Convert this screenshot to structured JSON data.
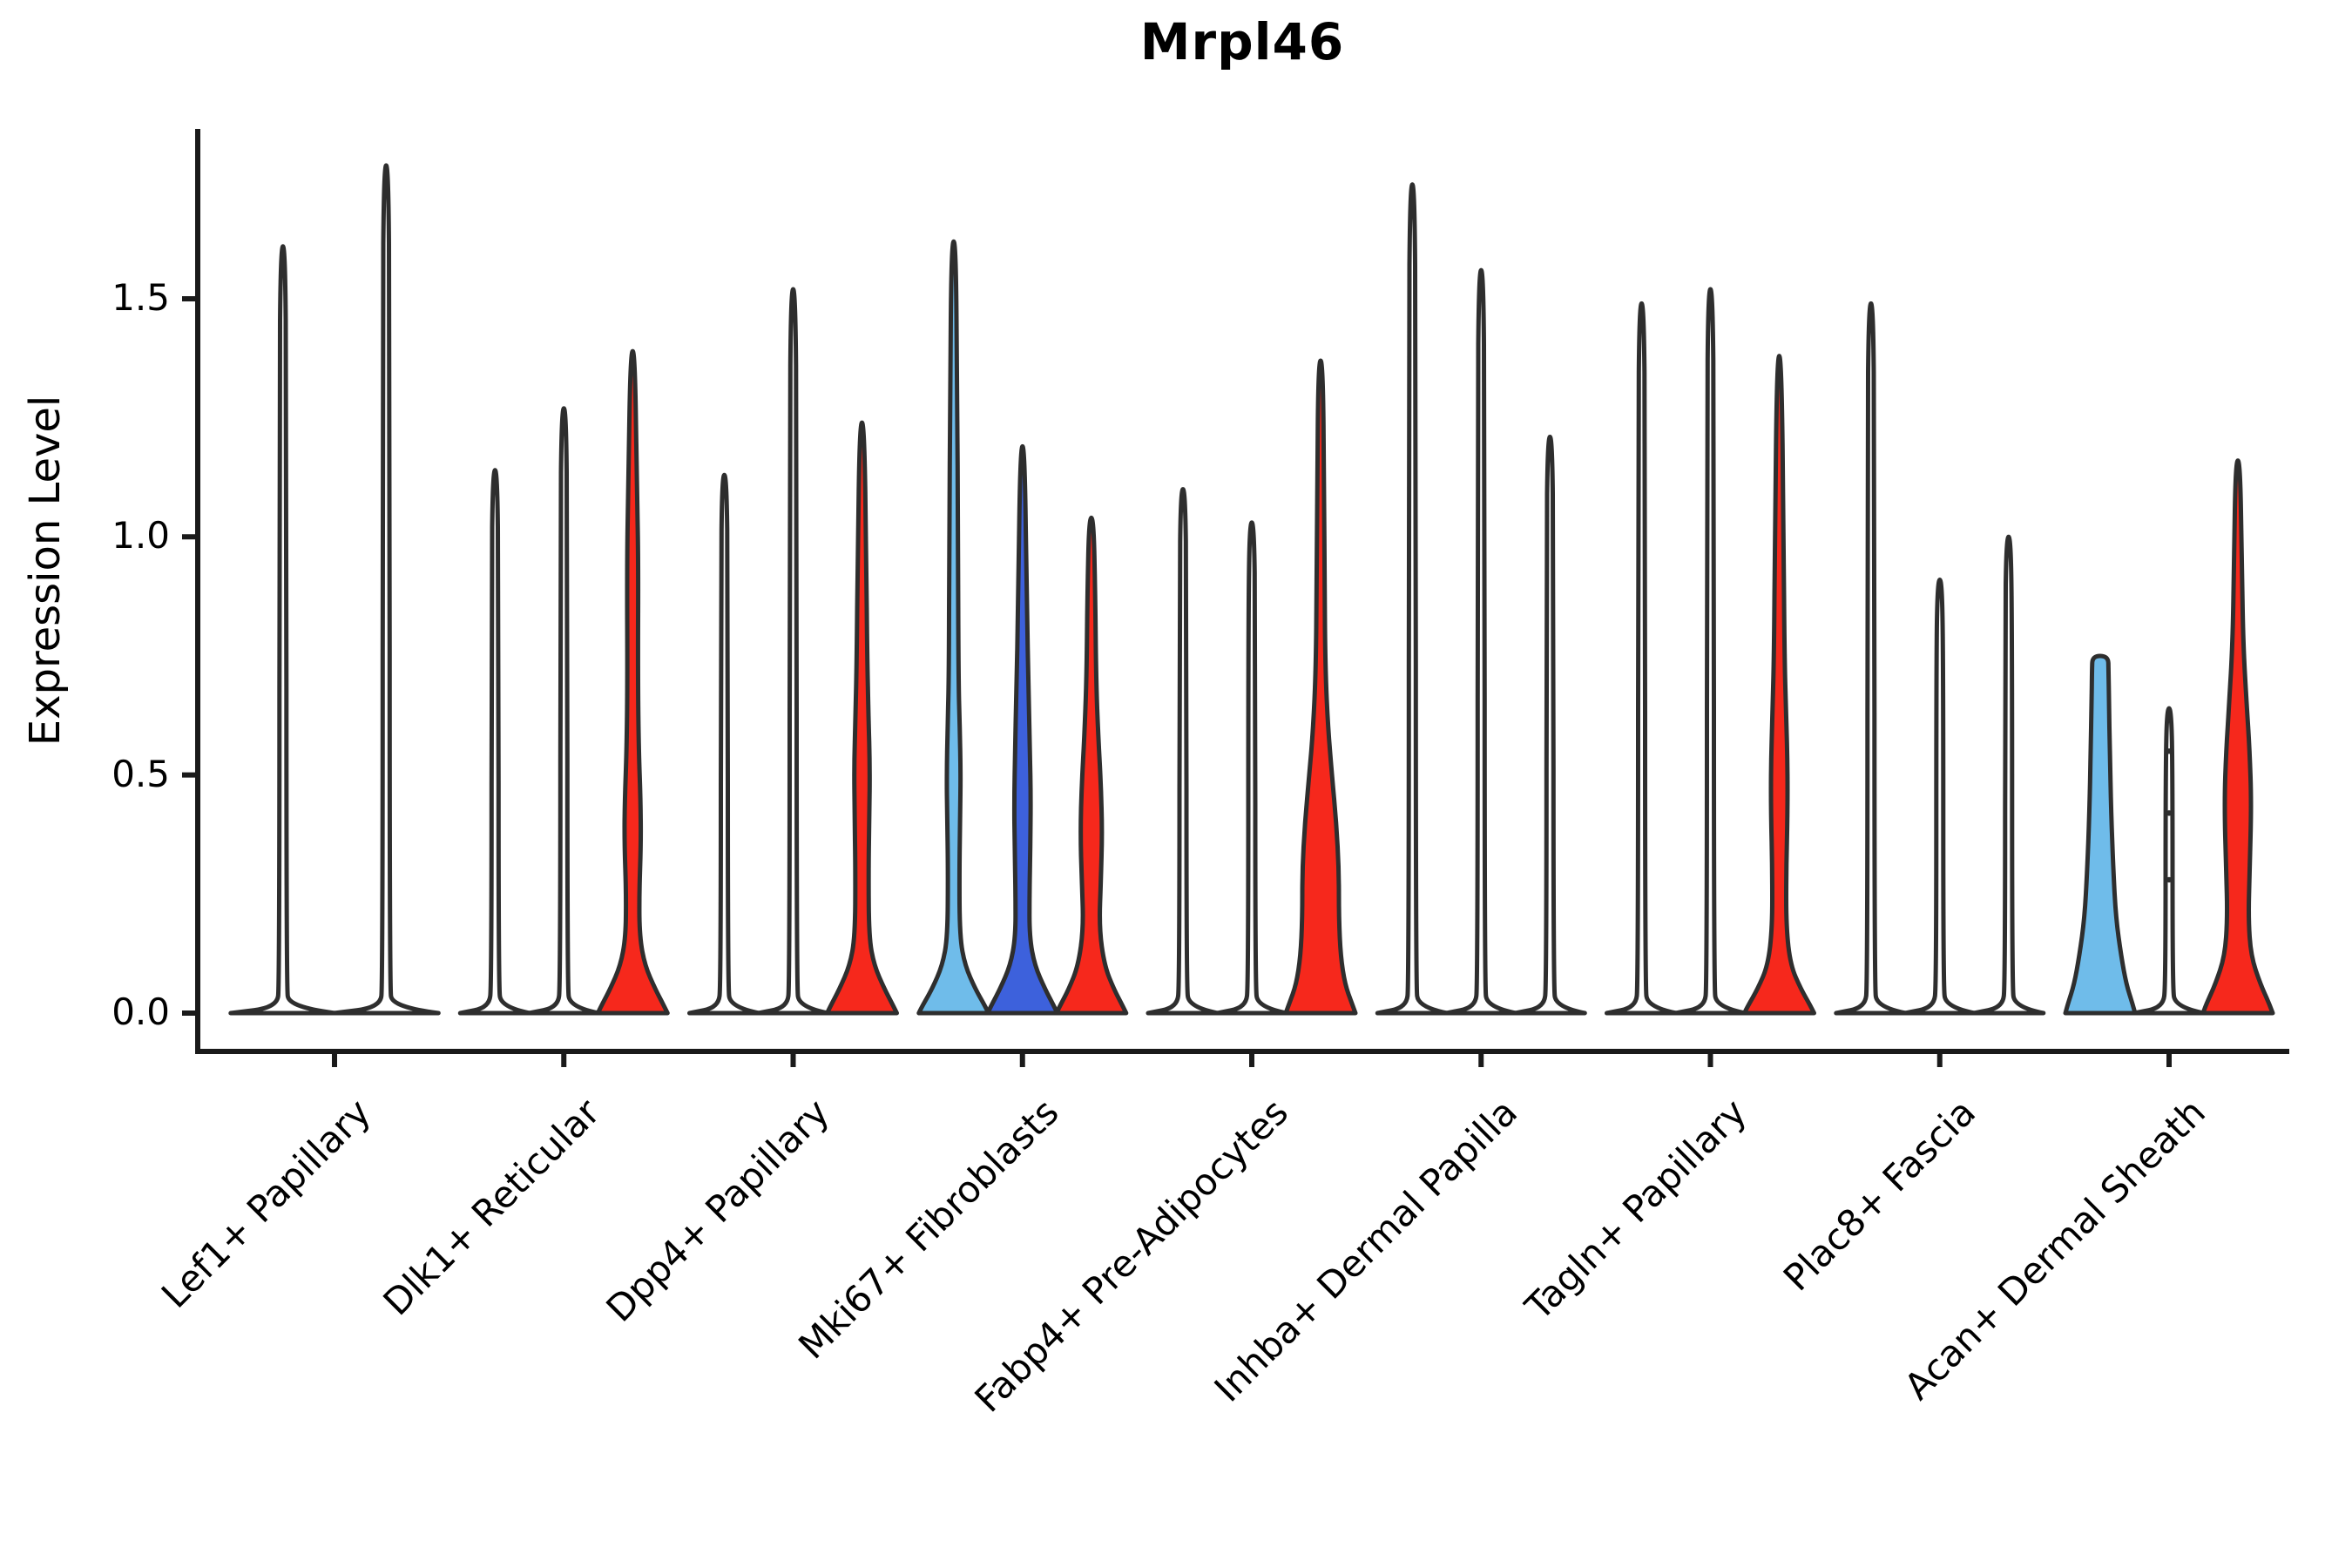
{
  "title": "Mrpl46",
  "ylabel": "Expression Level",
  "colors": {
    "red": "#f6281c",
    "blue": "#3d61dc",
    "lightblue": "#6fbcea",
    "white": "#ffffff",
    "outline": "#2e2e2e",
    "axis": "#1a1a1a"
  },
  "chart_data": {
    "type": "violin",
    "title": "Mrpl46",
    "xlabel": "",
    "ylabel": "Expression Level",
    "ylim": [
      0,
      1.85
    ],
    "yticks": [
      "0.0",
      "0.5",
      "1.0",
      "1.5"
    ],
    "ytick_values": [
      0.0,
      0.5,
      1.0,
      1.5
    ],
    "legend": "none",
    "grid": false,
    "categories": [
      "Lef1+ Papillary",
      "Dlk1+ Reticular",
      "Dpp4+ Papillary",
      "Mki67+ Fibroblasts",
      "Fabp4+ Pre-Adipocytes",
      "Inhba+ Dermal Papilla",
      "Tagln+ Papillary",
      "Plac8+ Fascia",
      "Acan+ Dermal Sheath"
    ],
    "groups": [
      {
        "label": "Lef1+ Papillary",
        "violins": [
          {
            "color": "white",
            "max": 1.61,
            "profile": [
              [
                0,
                60
              ],
              [
                0.012,
                7
              ],
              [
                0.06,
                4
              ],
              [
                1.3,
                4
              ],
              [
                1.61,
                2.5
              ]
            ]
          },
          {
            "color": "white",
            "max": 1.78,
            "profile": [
              [
                0,
                60
              ],
              [
                0.012,
                7
              ],
              [
                0.06,
                4
              ],
              [
                1.45,
                4
              ],
              [
                1.78,
                2.5
              ]
            ]
          }
        ]
      },
      {
        "label": "Dlk1+ Reticular",
        "violins": [
          {
            "color": "white",
            "max": 1.14,
            "profile": [
              [
                0,
                40
              ],
              [
                0.012,
                7
              ],
              [
                0.06,
                4
              ],
              [
                0.9,
                4
              ],
              [
                1.14,
                2.5
              ]
            ]
          },
          {
            "color": "white",
            "max": 1.27,
            "profile": [
              [
                0,
                40
              ],
              [
                0.012,
                7
              ],
              [
                0.06,
                4
              ],
              [
                1.0,
                4
              ],
              [
                1.27,
                2.5
              ]
            ]
          },
          {
            "color": "red",
            "max": 1.39,
            "profile": [
              [
                0,
                40
              ],
              [
                0.015,
                36
              ],
              [
                0.05,
                26
              ],
              [
                0.1,
                14
              ],
              [
                0.16,
                8
              ],
              [
                0.25,
                7.5
              ],
              [
                0.36,
                9.5
              ],
              [
                0.45,
                9
              ],
              [
                0.55,
                7
              ],
              [
                0.7,
                6
              ],
              [
                0.95,
                6.5
              ],
              [
                1.1,
                5
              ],
              [
                1.39,
                2.5
              ]
            ]
          }
        ]
      },
      {
        "label": "Dpp4+ Papillary",
        "violins": [
          {
            "color": "white",
            "max": 1.13,
            "profile": [
              [
                0,
                40
              ],
              [
                0.012,
                7
              ],
              [
                0.06,
                4
              ],
              [
                0.9,
                4
              ],
              [
                1.13,
                2.5
              ]
            ]
          },
          {
            "color": "white",
            "max": 1.52,
            "profile": [
              [
                0,
                40
              ],
              [
                0.012,
                7
              ],
              [
                0.06,
                4
              ],
              [
                1.2,
                4
              ],
              [
                1.52,
                2.5
              ]
            ]
          },
          {
            "color": "red",
            "max": 1.24,
            "profile": [
              [
                0,
                40
              ],
              [
                0.015,
                36
              ],
              [
                0.05,
                26
              ],
              [
                0.1,
                14
              ],
              [
                0.16,
                8
              ],
              [
                0.3,
                7.5
              ],
              [
                0.42,
                8.5
              ],
              [
                0.52,
                9
              ],
              [
                0.62,
                7.5
              ],
              [
                0.75,
                6
              ],
              [
                0.95,
                5
              ],
              [
                1.24,
                2.5
              ]
            ]
          }
        ]
      },
      {
        "label": "Mki67+ Fibroblasts",
        "violins": [
          {
            "color": "lightblue",
            "max": 1.62,
            "profile": [
              [
                0,
                40
              ],
              [
                0.015,
                36
              ],
              [
                0.05,
                25
              ],
              [
                0.1,
                13
              ],
              [
                0.16,
                7
              ],
              [
                0.3,
                6.5
              ],
              [
                0.42,
                7.5
              ],
              [
                0.5,
                8
              ],
              [
                0.6,
                7
              ],
              [
                0.7,
                5.5
              ],
              [
                1.0,
                5
              ],
              [
                1.3,
                4
              ],
              [
                1.62,
                2.5
              ]
            ]
          },
          {
            "color": "blue",
            "max": 1.19,
            "profile": [
              [
                0,
                40
              ],
              [
                0.015,
                36
              ],
              [
                0.05,
                26
              ],
              [
                0.1,
                14
              ],
              [
                0.16,
                8
              ],
              [
                0.25,
                8
              ],
              [
                0.35,
                9
              ],
              [
                0.45,
                9.5
              ],
              [
                0.55,
                8.5
              ],
              [
                0.68,
                7
              ],
              [
                0.85,
                5
              ],
              [
                1.19,
                2.5
              ]
            ]
          },
          {
            "color": "red",
            "max": 1.04,
            "profile": [
              [
                0,
                40
              ],
              [
                0.015,
                36
              ],
              [
                0.05,
                26
              ],
              [
                0.1,
                15
              ],
              [
                0.18,
                9
              ],
              [
                0.28,
                11
              ],
              [
                0.38,
                12.5
              ],
              [
                0.48,
                11
              ],
              [
                0.58,
                8
              ],
              [
                0.7,
                5.5
              ],
              [
                0.88,
                4.5
              ],
              [
                1.04,
                2.5
              ]
            ]
          }
        ]
      },
      {
        "label": "Fabp4+ Pre-Adipocytes",
        "violins": [
          {
            "color": "white",
            "max": 1.1,
            "profile": [
              [
                0,
                40
              ],
              [
                0.012,
                7
              ],
              [
                0.06,
                4
              ],
              [
                0.88,
                4
              ],
              [
                1.1,
                2.5
              ]
            ]
          },
          {
            "color": "white",
            "max": 1.03,
            "profile": [
              [
                0,
                40
              ],
              [
                0.012,
                7
              ],
              [
                0.06,
                4
              ],
              [
                0.82,
                4
              ],
              [
                1.03,
                2.5
              ]
            ]
          },
          {
            "color": "red",
            "max": 1.37,
            "profile": [
              [
                0,
                40
              ],
              [
                0.02,
                36
              ],
              [
                0.06,
                28
              ],
              [
                0.12,
                23
              ],
              [
                0.2,
                21
              ],
              [
                0.3,
                21
              ],
              [
                0.4,
                18
              ],
              [
                0.5,
                13
              ],
              [
                0.6,
                8.5
              ],
              [
                0.72,
                5.5
              ],
              [
                0.9,
                4.5
              ],
              [
                1.1,
                4
              ],
              [
                1.37,
                2.5
              ]
            ]
          }
        ]
      },
      {
        "label": "Inhba+ Dermal Papilla",
        "violins": [
          {
            "color": "white",
            "max": 1.74,
            "profile": [
              [
                0,
                40
              ],
              [
                0.012,
                7
              ],
              [
                0.06,
                4
              ],
              [
                1.4,
                4
              ],
              [
                1.74,
                2.5
              ]
            ]
          },
          {
            "color": "white",
            "max": 1.56,
            "profile": [
              [
                0,
                40
              ],
              [
                0.012,
                7
              ],
              [
                0.06,
                4
              ],
              [
                1.25,
                4
              ],
              [
                1.56,
                2.5
              ]
            ]
          },
          {
            "color": "white",
            "max": 1.21,
            "profile": [
              [
                0,
                40
              ],
              [
                0.012,
                7
              ],
              [
                0.06,
                4
              ],
              [
                0.97,
                4
              ],
              [
                1.21,
                2.5
              ]
            ]
          }
        ]
      },
      {
        "label": "Tagln+ Papillary",
        "violins": [
          {
            "color": "white",
            "max": 1.49,
            "profile": [
              [
                0,
                40
              ],
              [
                0.012,
                7
              ],
              [
                0.06,
                4
              ],
              [
                1.2,
                4
              ],
              [
                1.49,
                2.5
              ]
            ]
          },
          {
            "color": "white",
            "max": 1.52,
            "profile": [
              [
                0,
                40
              ],
              [
                0.012,
                7
              ],
              [
                0.06,
                4
              ],
              [
                1.22,
                4
              ],
              [
                1.52,
                2.5
              ]
            ]
          },
          {
            "color": "red",
            "max": 1.38,
            "profile": [
              [
                0,
                40
              ],
              [
                0.015,
                36
              ],
              [
                0.05,
                25
              ],
              [
                0.1,
                13
              ],
              [
                0.18,
                8
              ],
              [
                0.3,
                8
              ],
              [
                0.42,
                9.5
              ],
              [
                0.52,
                9.5
              ],
              [
                0.62,
                8
              ],
              [
                0.75,
                6
              ],
              [
                1.0,
                5
              ],
              [
                1.38,
                2.5
              ]
            ]
          }
        ]
      },
      {
        "label": "Plac8+ Fascia",
        "violins": [
          {
            "color": "white",
            "max": 1.49,
            "profile": [
              [
                0,
                40
              ],
              [
                0.012,
                7
              ],
              [
                0.06,
                4
              ],
              [
                1.2,
                4
              ],
              [
                1.49,
                2.5
              ]
            ]
          },
          {
            "color": "white",
            "max": 0.91,
            "profile": [
              [
                0,
                40
              ],
              [
                0.012,
                7
              ],
              [
                0.06,
                4
              ],
              [
                0.73,
                4
              ],
              [
                0.91,
                2.5
              ]
            ]
          },
          {
            "color": "white",
            "max": 1.0,
            "profile": [
              [
                0,
                40
              ],
              [
                0.012,
                7
              ],
              [
                0.06,
                4
              ],
              [
                0.8,
                4
              ],
              [
                1.0,
                2.5
              ]
            ]
          }
        ]
      },
      {
        "label": "Acan+ Dermal Sheath",
        "violins": [
          {
            "color": "lightblue",
            "max": 0.75,
            "profile": [
              [
                0,
                40
              ],
              [
                0.02,
                37
              ],
              [
                0.06,
                30
              ],
              [
                0.12,
                24
              ],
              [
                0.2,
                18
              ],
              [
                0.3,
                15
              ],
              [
                0.42,
                12.5
              ],
              [
                0.55,
                11
              ],
              [
                0.65,
                10
              ],
              [
                0.72,
                9.5
              ],
              [
                0.75,
                9
              ]
            ]
          },
          {
            "color": "white",
            "max": 0.64,
            "profile": [
              [
                0,
                40
              ],
              [
                0.012,
                7
              ],
              [
                0.06,
                4
              ],
              [
                0.5,
                4
              ],
              [
                0.64,
                2.5
              ]
            ],
            "dots": [
              0.28,
              0.42,
              0.55
            ]
          },
          {
            "color": "red",
            "max": 1.16,
            "profile": [
              [
                0,
                40
              ],
              [
                0.02,
                36
              ],
              [
                0.06,
                26
              ],
              [
                0.12,
                15
              ],
              [
                0.2,
                12
              ],
              [
                0.3,
                13.5
              ],
              [
                0.44,
                15.5
              ],
              [
                0.55,
                13.5
              ],
              [
                0.65,
                10
              ],
              [
                0.78,
                6
              ],
              [
                0.95,
                4.5
              ],
              [
                1.16,
                2.5
              ]
            ]
          }
        ]
      }
    ]
  }
}
